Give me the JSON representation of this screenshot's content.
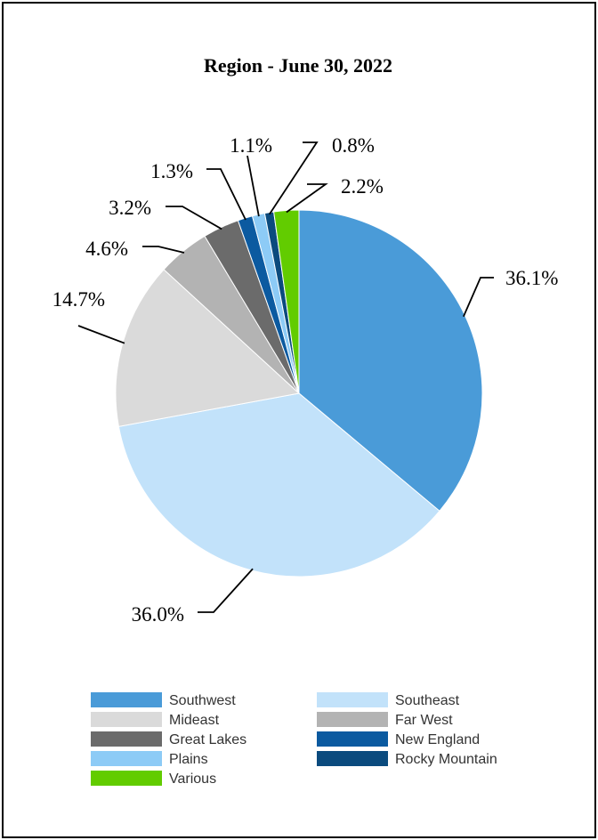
{
  "chart_data": {
    "type": "pie",
    "title": "Region - June 30, 2022",
    "slices": [
      {
        "name": "Southwest",
        "value": 36.1,
        "label": "36.1%",
        "color": "#4a9bd8"
      },
      {
        "name": "Southeast",
        "value": 36.0,
        "label": "36.0%",
        "color": "#c2e2fa"
      },
      {
        "name": "Mideast",
        "value": 14.7,
        "label": "14.7%",
        "color": "#dadada"
      },
      {
        "name": "Far West",
        "value": 4.6,
        "label": "4.6%",
        "color": "#b3b3b3"
      },
      {
        "name": "Great Lakes",
        "value": 3.2,
        "label": "3.2%",
        "color": "#6b6b6b"
      },
      {
        "name": "New England",
        "value": 1.3,
        "label": "1.3%",
        "color": "#0b5aa0"
      },
      {
        "name": "Plains",
        "value": 1.1,
        "label": "1.1%",
        "color": "#8dcbf6"
      },
      {
        "name": "Rocky Mountain",
        "value": 0.8,
        "label": "0.8%",
        "color": "#0b4b7e"
      },
      {
        "name": "Various",
        "value": 2.2,
        "label": "2.2%",
        "color": "#62cc00"
      }
    ],
    "legend": {
      "placement": "bottom",
      "order": [
        "Southwest",
        "Southeast",
        "Mideast",
        "Far West",
        "Great Lakes",
        "New England",
        "Plains",
        "Rocky Mountain",
        "Various"
      ]
    }
  }
}
